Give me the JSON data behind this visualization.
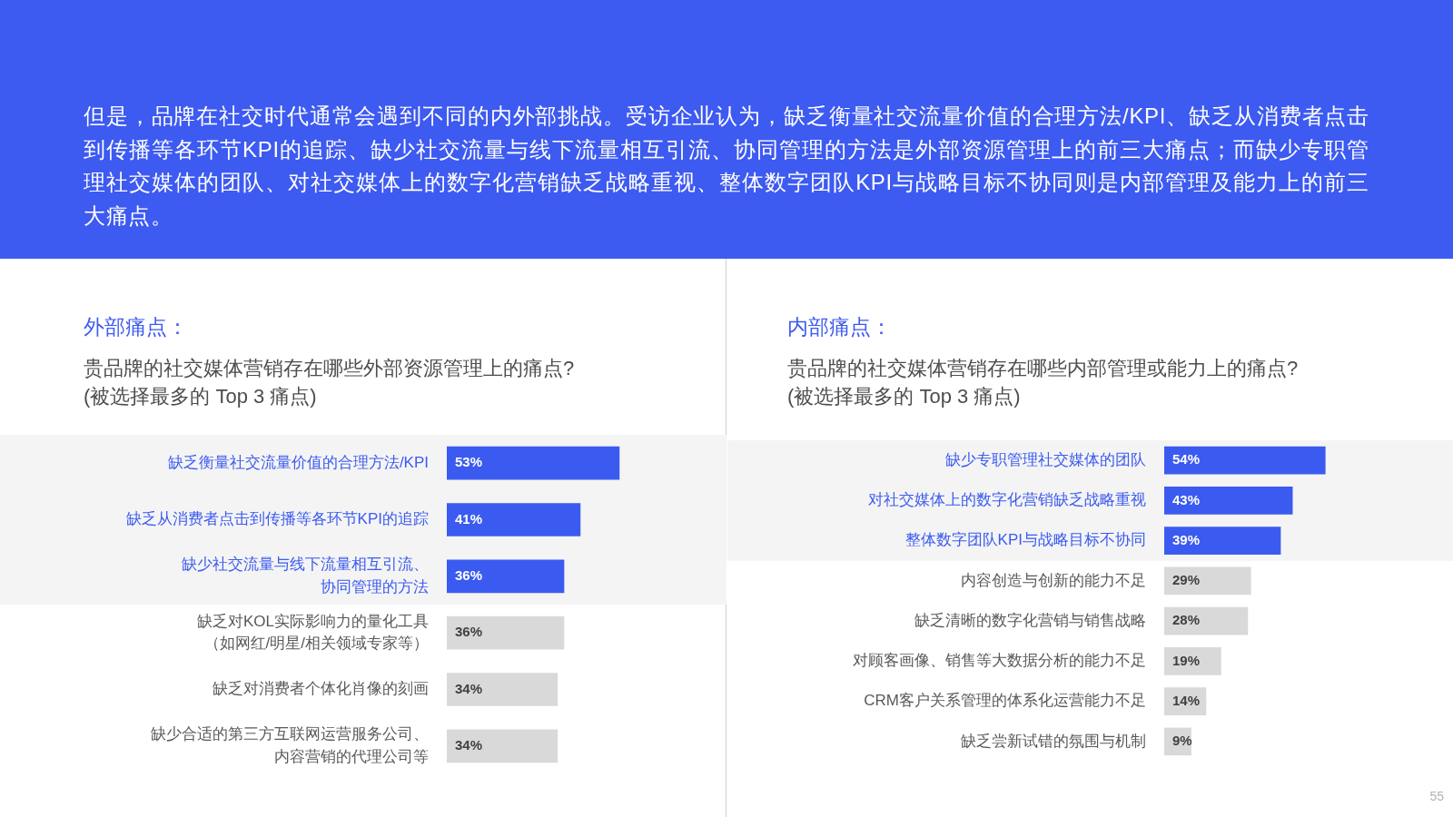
{
  "chart_data": [
    {
      "type": "bar",
      "orientation": "horizontal",
      "title": "外部痛点：",
      "subtitle": "贵品牌的社交媒体营销存在哪些外部资源管理上的痛点?\n(被选择最多的 Top 3 痛点)",
      "categories": [
        "缺乏衡量社交流量价值的合理方法/KPI",
        "缺乏从消费者点击到传播等各环节KPI的追踪",
        "缺少社交流量与线下流量相互引流、协同管理的方法",
        "缺乏对KOL实际影响力的量化工具（如网红/明星/相关领域专家等）",
        "缺乏对消费者个体化肖像的刻画",
        "缺少合适的第三方互联网运营服务公司、内容营销的代理公司等"
      ],
      "values": [
        53,
        41,
        36,
        36,
        34,
        34
      ],
      "value_labels": [
        "53%",
        "41%",
        "36%",
        "36%",
        "34%",
        "34%"
      ],
      "colors": [
        "#3b5bf0",
        "#3b5bf0",
        "#3b5bf0",
        "#d9d9d9",
        "#d9d9d9",
        "#d9d9d9"
      ],
      "bands": [
        {
          "axis": "y",
          "from": "缺乏衡量社交流量价值的合理方法/KPI",
          "to": "缺少社交流量与线下流量相互引流、协同管理的方法",
          "color": "#f4f4f4"
        }
      ],
      "tick_labels": "y",
      "annotations": [
        "但是，品牌在社交时代通常会遇到不同的内外部挑战。受访企业认为，缺乏衡量社交流量价值的合理方法/KPI、缺乏从消费者点击到传播等各环节KPI的追踪、缺少社交流量与线下流量相互引流、协同管理的方法是外部资源管理上的前三大痛点；而缺少专职管理社交媒体的团队、对社交媒体上的数字化营销缺乏战略重视、整体数字团队KPI与战略目标不协同则是内部管理及能力上的前三大痛点。"
      ]
    },
    {
      "type": "bar",
      "orientation": "horizontal",
      "title": "内部痛点：",
      "subtitle": "贵品牌的社交媒体营销存在哪些内部管理或能力上的痛点?\n(被选择最多的 Top 3 痛点)",
      "categories": [
        "缺少专职管理社交媒体的团队",
        "对社交媒体上的数字化营销缺乏战略重视",
        "整体数字团队KPI与战略目标不协同",
        "内容创造与创新的能力不足",
        "缺乏清晰的数字化营销与销售战略",
        "对顾客画像、销售等大数据分析的能力不足",
        "CRM客户关系管理的体系化运营能力不足",
        "缺乏尝新试错的氛围与机制"
      ],
      "values": [
        54,
        43,
        39,
        29,
        28,
        19,
        14,
        9
      ],
      "value_labels": [
        "54%",
        "43%",
        "39%",
        "29%",
        "28%",
        "19%",
        "14%",
        "9%"
      ],
      "colors": [
        "#3b5bf0",
        "#3b5bf0",
        "#3b5bf0",
        "#d9d9d9",
        "#d9d9d9",
        "#d9d9d9",
        "#d9d9d9",
        "#d9d9d9"
      ],
      "bands": [
        {
          "axis": "y",
          "from": "缺少专职管理社交媒体的团队",
          "to": "整体数字团队KPI与战略目标不协同",
          "color": "#f4f4f4"
        }
      ],
      "tick_labels": "y",
      "annotations": [
        "55"
      ]
    }
  ]
}
